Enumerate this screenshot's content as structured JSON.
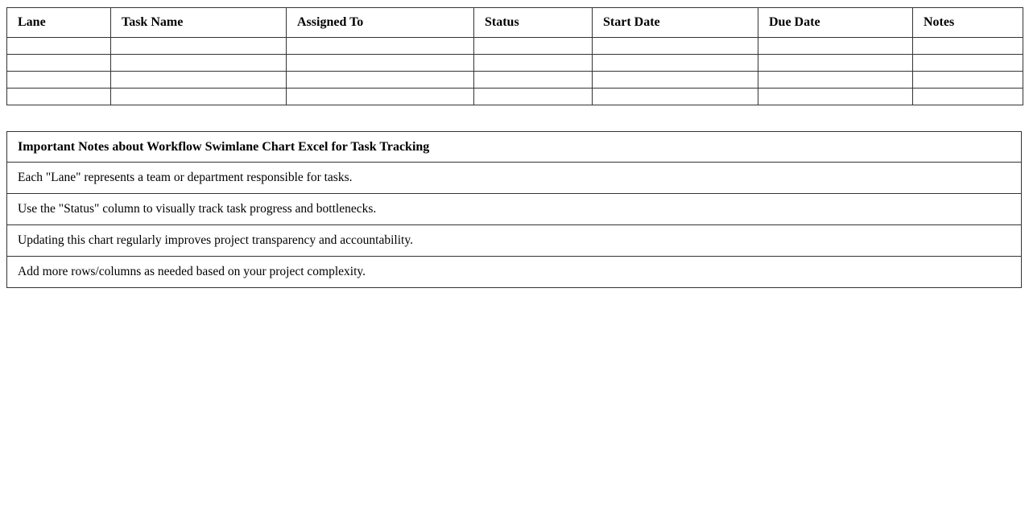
{
  "task_table": {
    "columns": [
      "Lane",
      "Task Name",
      "Assigned To",
      "Status",
      "Start Date",
      "Due Date",
      "Notes"
    ],
    "empty_row_count": 4
  },
  "notes_table": {
    "title": "Important Notes about Workflow Swimlane Chart Excel for Task Tracking",
    "notes": [
      "Each \"Lane\" represents a team or department responsible for tasks.",
      "Use the \"Status\" column to visually track task progress and bottlenecks.",
      "Updating this chart regularly improves project transparency and accountability.",
      "Add more rows/columns as needed based on your project complexity."
    ]
  },
  "colors": {
    "border": "#333333",
    "text": "#000000",
    "background": "#ffffff"
  }
}
